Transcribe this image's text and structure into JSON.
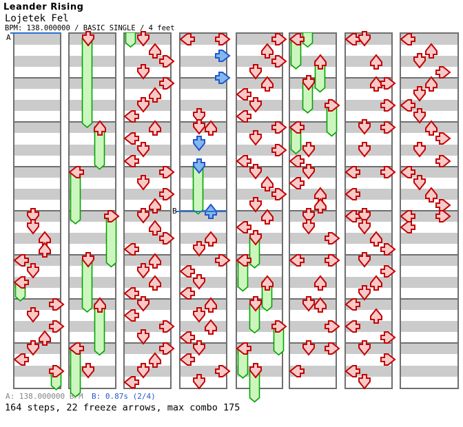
{
  "header": {
    "title": "Leander Rising",
    "song": "Lojetek Fel",
    "bpm_line": "BPM: 138.000000 / BASIC SINGLE / 4 feet"
  },
  "footer": {
    "marker_a": "A: 138.000000 BPM",
    "marker_b": "B: 0.87s (2/4)",
    "summary": "164 steps, 22 freeze arrows, max combo 175"
  },
  "colors": {
    "red_outline": "#c40000",
    "red_fill": "#f7c9c9",
    "blue_outline": "#2255cc",
    "blue_fill": "#82b8ec",
    "green_outline": "#00a300",
    "green_fill": "#cdf6bf",
    "stripe_gray": "#cbcbcb",
    "stripe_white": "#ffffff",
    "border_gray": "#6f6f6f",
    "marker_blue": "#2b6fd4",
    "footer_gray": "#848484",
    "footer_blue": "#2255cc"
  },
  "chart": {
    "columns": 8,
    "beats_per_column": 32,
    "lanes": [
      "L",
      "D",
      "U",
      "R"
    ],
    "markers": [
      {
        "label": "A",
        "col": 1,
        "beat": -0.5
      },
      {
        "label": "B",
        "col": 4,
        "beat": 15.58
      }
    ],
    "incoming_tails": [
      {
        "c": 3,
        "lane": "L",
        "end": 0.45
      },
      {
        "c": 6,
        "lane": "D",
        "end": 0.45
      }
    ],
    "arrows": [
      [
        1,
        "D",
        16,
        "r"
      ],
      [
        1,
        "D",
        17,
        "r"
      ],
      [
        1,
        "U",
        18,
        "r"
      ],
      [
        1,
        "U",
        19,
        "r"
      ],
      [
        1,
        "L",
        20,
        "r"
      ],
      [
        1,
        "D",
        21,
        "r"
      ],
      [
        1,
        "L",
        22,
        "f",
        1.3
      ],
      [
        1,
        "R",
        24,
        "r"
      ],
      [
        1,
        "D",
        25,
        "r"
      ],
      [
        1,
        "R",
        26,
        "r"
      ],
      [
        1,
        "U",
        27,
        "r"
      ],
      [
        1,
        "D",
        28,
        "r"
      ],
      [
        1,
        "L",
        29,
        "r"
      ],
      [
        1,
        "R",
        30,
        "f",
        1.3
      ],
      [
        2,
        "D",
        0,
        "f",
        7.6
      ],
      [
        2,
        "U",
        8,
        "f",
        3.4
      ],
      [
        2,
        "L",
        12,
        "f",
        4.3
      ],
      [
        2,
        "R",
        16,
        "f",
        4.2
      ],
      [
        2,
        "D",
        20,
        "f",
        4.3
      ],
      [
        2,
        "U",
        24,
        "f",
        4.2
      ],
      [
        2,
        "L",
        28,
        "f",
        4.0
      ],
      [
        2,
        "D",
        30,
        "r"
      ],
      [
        3,
        "D",
        0,
        "r"
      ],
      [
        3,
        "U",
        1,
        "r"
      ],
      [
        3,
        "R",
        2,
        "r"
      ],
      [
        3,
        "D",
        3,
        "r"
      ],
      [
        3,
        "R",
        4,
        "r"
      ],
      [
        3,
        "U",
        5,
        "r"
      ],
      [
        3,
        "D",
        6,
        "r"
      ],
      [
        3,
        "L",
        7,
        "r"
      ],
      [
        3,
        "U",
        8,
        "r"
      ],
      [
        3,
        "L",
        9,
        "r"
      ],
      [
        3,
        "D",
        10,
        "r"
      ],
      [
        3,
        "L",
        11,
        "r"
      ],
      [
        3,
        "R",
        12,
        "r"
      ],
      [
        3,
        "D",
        13,
        "r"
      ],
      [
        3,
        "R",
        14,
        "r"
      ],
      [
        3,
        "U",
        15,
        "r"
      ],
      [
        3,
        "D",
        16,
        "r"
      ],
      [
        3,
        "U",
        17,
        "r"
      ],
      [
        3,
        "R",
        18,
        "r"
      ],
      [
        3,
        "L",
        19,
        "r"
      ],
      [
        3,
        "U",
        20,
        "r"
      ],
      [
        3,
        "D",
        21,
        "r"
      ],
      [
        3,
        "U",
        22,
        "r"
      ],
      [
        3,
        "L",
        23,
        "r"
      ],
      [
        3,
        "D",
        24,
        "r"
      ],
      [
        3,
        "L",
        25,
        "r"
      ],
      [
        3,
        "R",
        26,
        "r"
      ],
      [
        3,
        "D",
        27,
        "r"
      ],
      [
        3,
        "R",
        28,
        "r"
      ],
      [
        3,
        "U",
        29,
        "r"
      ],
      [
        3,
        "D",
        30,
        "r"
      ],
      [
        3,
        "L",
        31,
        "r"
      ],
      [
        4,
        "L",
        0,
        "r"
      ],
      [
        4,
        "R",
        0,
        "r"
      ],
      [
        4,
        "R",
        1.5,
        "b"
      ],
      [
        4,
        "R",
        3.5,
        "b"
      ],
      [
        4,
        "D",
        7,
        "r"
      ],
      [
        4,
        "D",
        8,
        "r"
      ],
      [
        4,
        "U",
        8,
        "r"
      ],
      [
        4,
        "D",
        9.5,
        "b"
      ],
      [
        4,
        "D",
        11.5,
        "fb",
        3.9
      ],
      [
        4,
        "U",
        15.5,
        "b"
      ],
      [
        4,
        "U",
        18,
        "r"
      ],
      [
        4,
        "D",
        19,
        "r"
      ],
      [
        4,
        "R",
        20,
        "r"
      ],
      [
        4,
        "L",
        21,
        "r"
      ],
      [
        4,
        "D",
        22,
        "r"
      ],
      [
        4,
        "L",
        23,
        "r"
      ],
      [
        4,
        "U",
        24,
        "r"
      ],
      [
        4,
        "D",
        25,
        "r"
      ],
      [
        4,
        "U",
        26,
        "r"
      ],
      [
        4,
        "L",
        27,
        "r"
      ],
      [
        4,
        "D",
        28,
        "r"
      ],
      [
        4,
        "L",
        29,
        "r"
      ],
      [
        4,
        "R",
        30,
        "r"
      ],
      [
        4,
        "D",
        31,
        "r"
      ],
      [
        5,
        "R",
        0,
        "r"
      ],
      [
        5,
        "U",
        1,
        "r"
      ],
      [
        5,
        "R",
        2,
        "r"
      ],
      [
        5,
        "D",
        3,
        "r"
      ],
      [
        5,
        "U",
        4,
        "r"
      ],
      [
        5,
        "L",
        5,
        "r"
      ],
      [
        5,
        "D",
        6,
        "r"
      ],
      [
        5,
        "L",
        7,
        "r"
      ],
      [
        5,
        "R",
        8,
        "r"
      ],
      [
        5,
        "D",
        9,
        "r"
      ],
      [
        5,
        "R",
        10,
        "r"
      ],
      [
        5,
        "L",
        11,
        "r"
      ],
      [
        5,
        "D",
        12,
        "r"
      ],
      [
        5,
        "U",
        13,
        "r"
      ],
      [
        5,
        "R",
        14,
        "r"
      ],
      [
        5,
        "D",
        15,
        "r"
      ],
      [
        5,
        "U",
        16,
        "r"
      ],
      [
        5,
        "L",
        17,
        "r"
      ],
      [
        5,
        "D",
        18,
        "f",
        2.3
      ],
      [
        5,
        "L",
        20,
        "f",
        2.4
      ],
      [
        5,
        "U",
        22,
        "f",
        2.2
      ],
      [
        5,
        "D",
        24,
        "f",
        2.2
      ],
      [
        5,
        "R",
        26,
        "f",
        2.2
      ],
      [
        5,
        "L",
        28,
        "f",
        2.3
      ],
      [
        5,
        "D",
        30,
        "f",
        2.4
      ],
      [
        6,
        "L",
        0,
        "f",
        2.3
      ],
      [
        6,
        "U",
        2,
        "f",
        2.4
      ],
      [
        6,
        "D",
        4,
        "f",
        2.3
      ],
      [
        6,
        "R",
        6,
        "f",
        2.4
      ],
      [
        6,
        "L",
        8,
        "f",
        2.0
      ],
      [
        6,
        "D",
        10,
        "r"
      ],
      [
        6,
        "L",
        11,
        "r"
      ],
      [
        6,
        "D",
        12,
        "r"
      ],
      [
        6,
        "L",
        13,
        "r"
      ],
      [
        6,
        "U",
        14,
        "r"
      ],
      [
        6,
        "U",
        15,
        "r"
      ],
      [
        6,
        "D",
        16,
        "r"
      ],
      [
        6,
        "D",
        17,
        "r"
      ],
      [
        6,
        "R",
        18,
        "r"
      ],
      [
        6,
        "L",
        20,
        "r"
      ],
      [
        6,
        "R",
        20,
        "r"
      ],
      [
        6,
        "U",
        22,
        "r"
      ],
      [
        6,
        "D",
        24,
        "r"
      ],
      [
        6,
        "U",
        24,
        "r"
      ],
      [
        6,
        "R",
        26,
        "r"
      ],
      [
        6,
        "D",
        28,
        "r"
      ],
      [
        6,
        "R",
        28,
        "r"
      ],
      [
        6,
        "L",
        30,
        "r"
      ],
      [
        7,
        "L",
        0,
        "r"
      ],
      [
        7,
        "D",
        0,
        "r"
      ],
      [
        7,
        "U",
        2,
        "r"
      ],
      [
        7,
        "U",
        4,
        "r"
      ],
      [
        7,
        "R",
        4,
        "r"
      ],
      [
        7,
        "R",
        6,
        "r"
      ],
      [
        7,
        "D",
        8,
        "r"
      ],
      [
        7,
        "R",
        8,
        "r"
      ],
      [
        7,
        "D",
        10,
        "r"
      ],
      [
        7,
        "L",
        12,
        "r"
      ],
      [
        7,
        "R",
        12,
        "r"
      ],
      [
        7,
        "L",
        14,
        "r"
      ],
      [
        7,
        "L",
        16,
        "r"
      ],
      [
        7,
        "D",
        16,
        "r"
      ],
      [
        7,
        "D",
        17,
        "r"
      ],
      [
        7,
        "U",
        18,
        "r"
      ],
      [
        7,
        "R",
        19,
        "r"
      ],
      [
        7,
        "D",
        20,
        "r"
      ],
      [
        7,
        "R",
        21,
        "r"
      ],
      [
        7,
        "U",
        22,
        "r"
      ],
      [
        7,
        "D",
        23,
        "r"
      ],
      [
        7,
        "L",
        24,
        "r"
      ],
      [
        7,
        "U",
        25,
        "r"
      ],
      [
        7,
        "L",
        26,
        "r"
      ],
      [
        7,
        "R",
        27,
        "r"
      ],
      [
        7,
        "D",
        28,
        "r"
      ],
      [
        7,
        "R",
        29,
        "r"
      ],
      [
        7,
        "L",
        30,
        "r"
      ],
      [
        7,
        "D",
        31,
        "r"
      ],
      [
        8,
        "L",
        0,
        "r"
      ],
      [
        8,
        "U",
        1,
        "r"
      ],
      [
        8,
        "D",
        2,
        "r"
      ],
      [
        8,
        "R",
        3,
        "r"
      ],
      [
        8,
        "U",
        4,
        "r"
      ],
      [
        8,
        "D",
        5,
        "r"
      ],
      [
        8,
        "L",
        6,
        "r"
      ],
      [
        8,
        "D",
        7,
        "r"
      ],
      [
        8,
        "U",
        8,
        "r"
      ],
      [
        8,
        "R",
        9,
        "r"
      ],
      [
        8,
        "D",
        10,
        "r"
      ],
      [
        8,
        "R",
        11,
        "r"
      ],
      [
        8,
        "L",
        12,
        "r"
      ],
      [
        8,
        "D",
        13,
        "r"
      ],
      [
        8,
        "U",
        14,
        "r"
      ],
      [
        8,
        "R",
        15,
        "r"
      ],
      [
        8,
        "L",
        16,
        "r"
      ],
      [
        8,
        "R",
        16,
        "r"
      ],
      [
        8,
        "L",
        17,
        "r"
      ]
    ]
  }
}
